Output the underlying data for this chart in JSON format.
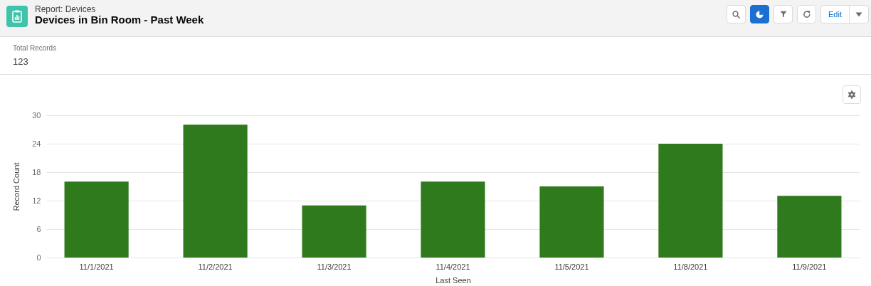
{
  "chart_data": {
    "type": "bar",
    "title": "Devices in Bin Room - Past Week",
    "subtitle": "Report: Devices",
    "xlabel": "Last Seen",
    "ylabel": "Record Count",
    "categories": [
      "11/1/2021",
      "11/2/2021",
      "11/3/2021",
      "11/4/2021",
      "11/5/2021",
      "11/8/2021",
      "11/9/2021"
    ],
    "values": [
      16,
      28,
      11,
      16,
      15,
      24,
      13
    ],
    "color": "#2f7a1c",
    "ylim": [
      0,
      30
    ],
    "yticks": [
      0,
      6,
      12,
      18,
      24,
      30
    ],
    "grid": "y",
    "annotations": [
      "Total Records",
      "123",
      "Edit"
    ]
  }
}
